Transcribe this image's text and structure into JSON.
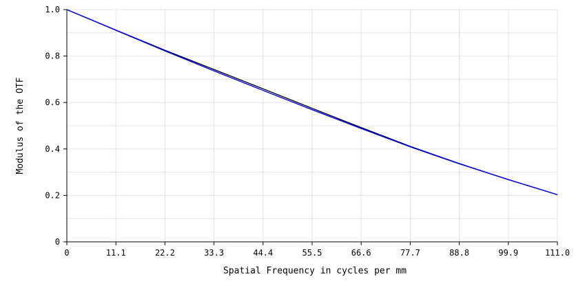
{
  "chart_data": {
    "type": "line",
    "title": "",
    "xlabel": "Spatial Frequency in cycles per mm",
    "ylabel": "Modulus of the OTF",
    "xlim": [
      0,
      111.0
    ],
    "ylim": [
      0,
      1.0
    ],
    "x_ticks": [
      "0",
      "11.1",
      "22.2",
      "33.3",
      "44.4",
      "55.5",
      "66.6",
      "77.7",
      "88.8",
      "99.9",
      "111.0"
    ],
    "y_ticks": [
      "0",
      "0.2",
      "0.4",
      "0.6",
      "0.8",
      "1.0"
    ],
    "grid": true,
    "legend": "none",
    "series": [
      {
        "color": "#000000",
        "x": [
          0,
          11.1,
          22.2,
          33.3,
          44.4,
          55.5,
          66.6,
          77.7,
          88.8,
          99.9,
          111.0
        ],
        "y": [
          1.0,
          0.912,
          0.825,
          0.742,
          0.659,
          0.575,
          0.492,
          0.411,
          0.337,
          0.268,
          0.203
        ]
      },
      {
        "color": "#0000ff",
        "x": [
          0,
          11.1,
          22.2,
          33.3,
          44.4,
          55.5,
          66.6,
          77.7,
          88.8,
          99.9,
          111.0
        ],
        "y": [
          1.0,
          0.911,
          0.822,
          0.736,
          0.652,
          0.569,
          0.488,
          0.409,
          0.336,
          0.268,
          0.203
        ]
      }
    ]
  }
}
